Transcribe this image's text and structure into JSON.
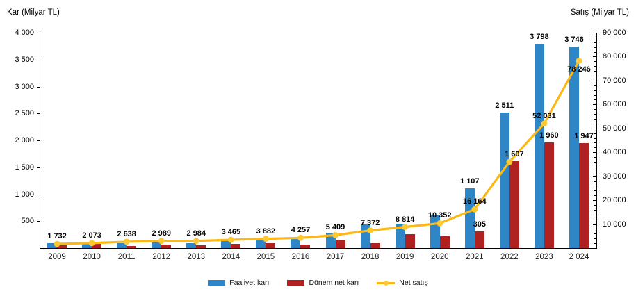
{
  "header": {
    "left_axis_title": "Kar (Milyar TL)",
    "right_axis_title": "Satış (Milyar TL)"
  },
  "legend": {
    "items": [
      {
        "label": "Faaliyet karı",
        "swatch": "bar",
        "color": "#2E86C6"
      },
      {
        "label": "Dönem net karı",
        "swatch": "bar",
        "color": "#B02222"
      },
      {
        "label": "Net satış",
        "swatch": "line",
        "color": "#FDB813",
        "marker_color": "#FFC82E"
      }
    ]
  },
  "chart_data": {
    "type": "combo-bar-line",
    "categories": [
      "2009",
      "2010",
      "2011",
      "2012",
      "2013",
      "2014",
      "2015",
      "2016",
      "2017",
      "2018",
      "2019",
      "2020",
      "2021",
      "2022",
      "2023",
      "2 024"
    ],
    "series": [
      {
        "name": "Faaliyet karı",
        "chart_type": "bar",
        "axis": "left",
        "color": "#2E86C6",
        "values": [
          85,
          95,
          90,
          100,
          95,
          140,
          150,
          170,
          285,
          435,
          455,
          615,
          1107,
          2511,
          3798,
          3746
        ],
        "data_labels": [
          "",
          "",
          "",
          "",
          "",
          "",
          "",
          "",
          "",
          "",
          "",
          "",
          "1 107",
          "2 511",
          "3 798",
          "3 746"
        ]
      },
      {
        "name": "Dönem net karı",
        "chart_type": "bar",
        "axis": "left",
        "color": "#B02222",
        "values": [
          55,
          85,
          40,
          70,
          50,
          80,
          90,
          60,
          155,
          95,
          260,
          225,
          305,
          1607,
          1960,
          1947
        ],
        "data_labels": [
          "",
          "",
          "",
          "",
          "",
          "",
          "",
          "",
          "",
          "",
          "",
          "",
          "305",
          "1 607",
          "1 960",
          "1 947"
        ]
      },
      {
        "name": "Net satış",
        "chart_type": "line",
        "axis": "right",
        "color": "#FDB813",
        "marker_color": "#FFC82E",
        "values": [
          1732,
          2073,
          2638,
          2989,
          2984,
          3465,
          3882,
          4257,
          5409,
          7372,
          8814,
          10352,
          16164,
          36000,
          52031,
          78246
        ],
        "data_labels": [
          "1 732",
          "2 073",
          "2 638",
          "2 989",
          "2 984",
          "3 465",
          "3 882",
          "4 257",
          "5 409",
          "7 372",
          "8 814",
          "10 352",
          "16 164",
          "",
          "52 031",
          "78 246"
        ],
        "label_side": [
          "above",
          "above",
          "above",
          "above",
          "above",
          "above",
          "above",
          "above",
          "above",
          "above",
          "above",
          "above",
          "above",
          "",
          "above",
          "below"
        ]
      }
    ],
    "left_axis": {
      "title": "Kar (Milyar TL)",
      "min": 0,
      "max": 4000,
      "major_step": 500,
      "tick_labels": [
        "500",
        "1 000",
        "1 500",
        "2 000",
        "2 500",
        "3 000",
        "3 500",
        "4 000"
      ]
    },
    "right_axis": {
      "title": "Satış (Milyar TL)",
      "min": 0,
      "max": 90000,
      "major_step": 10000,
      "minor_step": 2000,
      "tick_labels": [
        "10 000",
        "20 000",
        "30 000",
        "40 000",
        "50 000",
        "60 000",
        "70 000",
        "80 000",
        "90 000"
      ]
    },
    "legend_position": "bottom",
    "grid": false
  }
}
